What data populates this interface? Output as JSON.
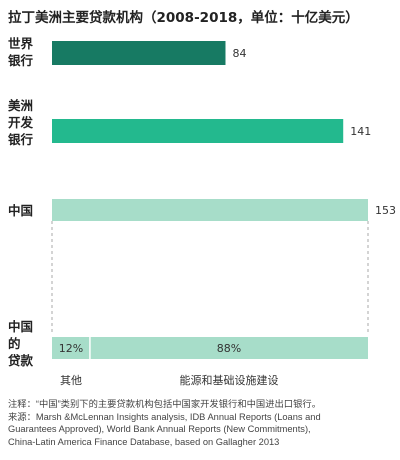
{
  "chart_data": {
    "type": "bar",
    "title": "拉丁美洲主要贷款机构（2008-2018，单位：十亿美元）",
    "categories": [
      [
        "世界",
        "银行"
      ],
      [
        "美洲",
        "开发",
        "银行"
      ],
      [
        "中国"
      ]
    ],
    "values": [
      84,
      141,
      153
    ],
    "value_labels": [
      "84",
      "141",
      "153"
    ],
    "xlim": [
      0,
      153
    ],
    "bar_colors": [
      "#177a63",
      "#23b98e",
      "#a7ddc9"
    ],
    "breakdown": {
      "label": [
        "中国",
        "的",
        "贷款"
      ],
      "segments": [
        {
          "name": "其他",
          "percent": 12,
          "label": "12%"
        },
        {
          "name": "能源和基础设施建设",
          "percent": 88,
          "label": "88%"
        }
      ],
      "color": "#a7ddc9"
    },
    "grid": false
  },
  "notes": {
    "line1": "注释：“中国”类别下的主要贷款机构包括中国家开发银行和中国进出口银行。",
    "line2": "来源：Marsh &McLennan Insights analysis, IDB Annual Reports (Loans and",
    "line3": "Guarantees Approved), World Bank Annual Reports (New Commitments),",
    "line4": "China-Latin America Finance Database, based on Gallagher 2013"
  }
}
